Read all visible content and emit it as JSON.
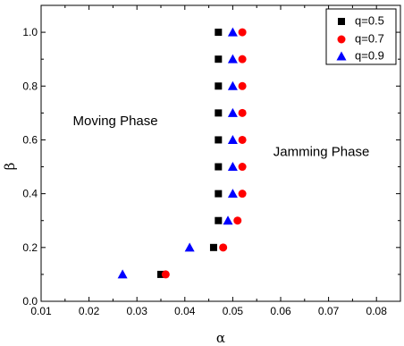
{
  "chart_data": {
    "type": "scatter",
    "xlabel": "α",
    "ylabel": "β",
    "xlim": [
      0.01,
      0.085
    ],
    "ylim": [
      0.0,
      1.1
    ],
    "xticks": [
      0.01,
      0.02,
      0.03,
      0.04,
      0.05,
      0.06,
      0.07,
      0.08
    ],
    "xtick_labels": [
      "0.01",
      "0.02",
      "0.03",
      "0.04",
      "0.05",
      "0.06",
      "0.07",
      "0.08"
    ],
    "yticks": [
      0.0,
      0.2,
      0.4,
      0.6,
      0.8,
      1.0
    ],
    "ytick_labels": [
      "0.0",
      "0.2",
      "0.4",
      "0.6",
      "0.8",
      "1.0"
    ],
    "grid": false,
    "legend_position": "top-right",
    "annotations": [
      {
        "text": "Moving Phase",
        "x": 0.0255,
        "y": 0.655
      },
      {
        "text": "Jamming Phase",
        "x": 0.0685,
        "y": 0.54
      }
    ],
    "series": [
      {
        "name": "q=0.5",
        "marker": "square",
        "color": "#000000",
        "points": [
          [
            0.035,
            0.1
          ],
          [
            0.046,
            0.2
          ],
          [
            0.047,
            0.3
          ],
          [
            0.047,
            0.4
          ],
          [
            0.047,
            0.5
          ],
          [
            0.047,
            0.6
          ],
          [
            0.047,
            0.7
          ],
          [
            0.047,
            0.8
          ],
          [
            0.047,
            0.9
          ],
          [
            0.047,
            1.0
          ]
        ]
      },
      {
        "name": "q=0.7",
        "marker": "circle",
        "color": "#ff0000",
        "points": [
          [
            0.036,
            0.1
          ],
          [
            0.048,
            0.2
          ],
          [
            0.051,
            0.3
          ],
          [
            0.052,
            0.4
          ],
          [
            0.052,
            0.5
          ],
          [
            0.052,
            0.6
          ],
          [
            0.052,
            0.7
          ],
          [
            0.052,
            0.8
          ],
          [
            0.052,
            0.9
          ],
          [
            0.052,
            1.0
          ]
        ]
      },
      {
        "name": "q=0.9",
        "marker": "triangle",
        "color": "#0000ff",
        "points": [
          [
            0.027,
            0.1
          ],
          [
            0.041,
            0.2
          ],
          [
            0.049,
            0.3
          ],
          [
            0.05,
            0.4
          ],
          [
            0.05,
            0.5
          ],
          [
            0.05,
            0.6
          ],
          [
            0.05,
            0.7
          ],
          [
            0.05,
            0.8
          ],
          [
            0.05,
            0.9
          ],
          [
            0.05,
            1.0
          ]
        ]
      }
    ]
  }
}
